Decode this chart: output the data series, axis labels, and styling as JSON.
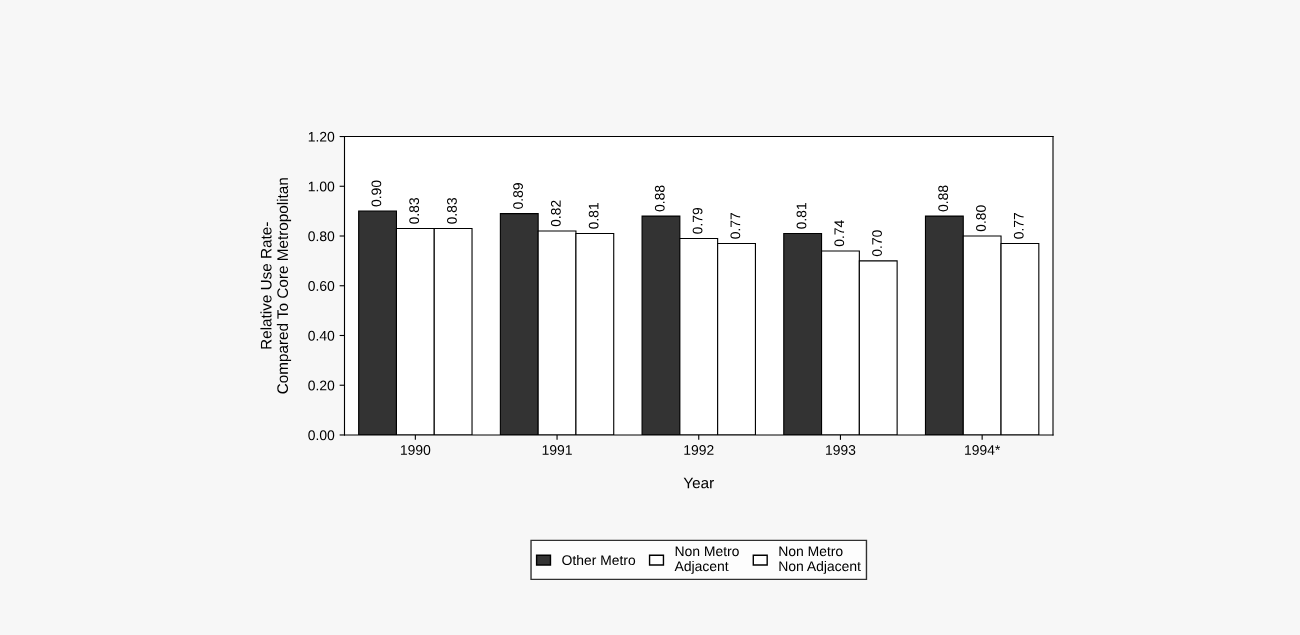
{
  "chart_data": {
    "type": "bar",
    "xlabel": "Year",
    "ylabel": "Relative Use Rate-\nCompared To Core Metropolitan",
    "categories": [
      "1990",
      "1991",
      "1992",
      "1993",
      "1994*"
    ],
    "series": [
      {
        "name": "Other Metro",
        "color": "#333333",
        "values": [
          0.9,
          0.89,
          0.88,
          0.81,
          0.88
        ],
        "value_labels": [
          "0.90",
          "0.89",
          "0.88",
          "0.81",
          "0.88"
        ]
      },
      {
        "name": "Non Metro\nAdjacent",
        "color": "#ffffff",
        "values": [
          0.83,
          0.82,
          0.79,
          0.74,
          0.8
        ],
        "value_labels": [
          "0.83",
          "0.82",
          "0.79",
          "0.74",
          "0.80"
        ]
      },
      {
        "name": "Non Metro\nNon Adjacent",
        "color": "#ffffff",
        "values": [
          0.83,
          0.81,
          0.77,
          0.7,
          0.77
        ],
        "value_labels": [
          "0.83",
          "0.81",
          "0.77",
          "0.70",
          "0.77"
        ]
      }
    ],
    "ylim": [
      0,
      1.2
    ],
    "yticks": [
      {
        "value": 0,
        "label": "0.00"
      },
      {
        "value": 0.2,
        "label": "0.20"
      },
      {
        "value": 0.4,
        "label": "0.40"
      },
      {
        "value": 0.6,
        "label": "0.60"
      },
      {
        "value": 0.8,
        "label": "0.80"
      },
      {
        "value": 1.0,
        "label": "1.00"
      },
      {
        "value": 1.2,
        "label": "1.20"
      }
    ],
    "grid": false,
    "legend": "bottom"
  }
}
